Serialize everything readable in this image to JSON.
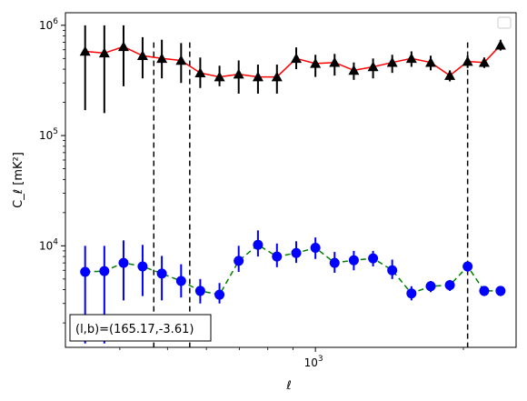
{
  "chart_data": {
    "type": "scatter",
    "title": "",
    "xlabel": "ℓ",
    "ylabel": "C_ℓ [mK²]",
    "xscale": "log",
    "yscale": "log",
    "xlim": [
      310,
      2560
    ],
    "ylim": [
      1200,
      1300000
    ],
    "x_ticks": [
      {
        "value": 1000,
        "label": "10",
        "exp": "3"
      }
    ],
    "y_ticks": [
      {
        "value": 10000,
        "label": "10",
        "exp": "4"
      },
      {
        "value": 100000,
        "label": "10",
        "exp": "5"
      },
      {
        "value": 1000000,
        "label": "10",
        "exp": "6"
      }
    ],
    "grid": false,
    "legend": {
      "placement": "top-right",
      "entries": []
    },
    "vlines": [
      469,
      555,
      2040
    ],
    "annotation": "(l,b)=(165.17,-3.61)",
    "series": [
      {
        "line_color": "#ff0000",
        "line_style": "solid",
        "marker": "triangle",
        "marker_color": "#000000",
        "error_color": "#000000",
        "x": [
          340,
          372,
          407,
          445,
          487,
          533,
          583,
          638,
          698,
          764,
          835,
          914,
          1000,
          1094,
          1197,
          1310,
          1433,
          1568,
          1716,
          1877,
          2040,
          2205,
          2380
        ],
        "y": [
          580000,
          560000,
          640000,
          530000,
          500000,
          480000,
          370000,
          340000,
          360000,
          340000,
          340000,
          500000,
          450000,
          460000,
          390000,
          420000,
          460000,
          500000,
          460000,
          350000,
          470000,
          460000,
          660000
        ],
        "yerr_low": [
          170000,
          160000,
          280000,
          330000,
          330000,
          300000,
          270000,
          280000,
          240000,
          240000,
          240000,
          400000,
          340000,
          350000,
          320000,
          330000,
          370000,
          420000,
          390000,
          310000,
          410000,
          410000,
          590000
        ],
        "yerr_high": [
          1000000,
          1000000,
          1000000,
          780000,
          740000,
          690000,
          510000,
          430000,
          480000,
          440000,
          440000,
          630000,
          540000,
          550000,
          460000,
          500000,
          540000,
          580000,
          530000,
          390000,
          530000,
          510000,
          740000
        ]
      },
      {
        "line_color": "#008000",
        "line_style": "dashed",
        "marker": "circle",
        "marker_color": "#0000ff",
        "error_color": "#0000ff",
        "x": [
          340,
          372,
          407,
          445,
          487,
          533,
          583,
          638,
          698,
          764,
          835,
          914,
          1000,
          1094,
          1197,
          1310,
          1433,
          1568,
          1716,
          1877,
          2040,
          2205,
          2380
        ],
        "y": [
          5800,
          5900,
          7000,
          6500,
          5600,
          4800,
          3900,
          3600,
          7300,
          10200,
          8000,
          8600,
          9600,
          7000,
          7400,
          7700,
          6000,
          3700,
          4300,
          4400,
          6500,
          3900,
          3900
        ],
        "yerr_low": [
          1300,
          1300,
          3200,
          3500,
          3200,
          3400,
          3000,
          3000,
          5800,
          8000,
          6400,
          7000,
          7600,
          5700,
          6000,
          6500,
          5000,
          3200,
          3800,
          3900,
          5800,
          3500,
          3500
        ],
        "yerr_high": [
          10000,
          10000,
          11200,
          10200,
          8100,
          6800,
          5000,
          4600,
          10000,
          13800,
          10500,
          11000,
          11900,
          8800,
          9000,
          9000,
          7500,
          4300,
          4800,
          4900,
          7100,
          4300,
          4300
        ]
      }
    ]
  }
}
